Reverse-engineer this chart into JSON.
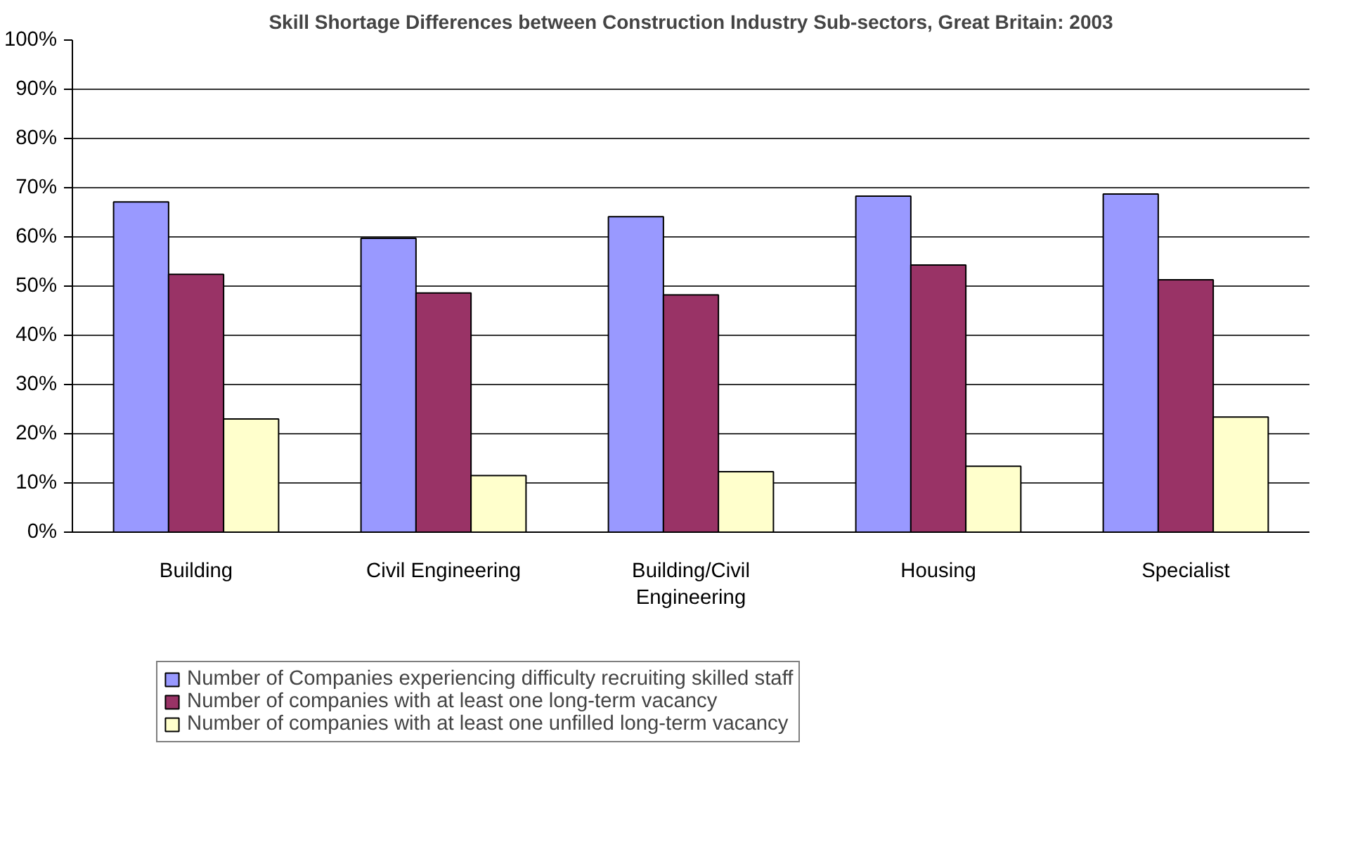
{
  "chart_data": {
    "type": "bar",
    "title": "Skill Shortage Differences between Construction Industry Sub-sectors, Great Britain: 2003",
    "categories": [
      "Building",
      "Civil Engineering",
      "Building/Civil Engineering",
      "Housing",
      "Specialist"
    ],
    "series": [
      {
        "name": "Number of Companies experiencing difficulty recruiting skilled staff",
        "color": "#9999ff",
        "values": [
          67.1,
          59.7,
          64.1,
          68.3,
          68.7
        ]
      },
      {
        "name": "Number of companies with at least one long-term vacancy",
        "color": "#993366",
        "values": [
          52.4,
          48.6,
          48.2,
          54.3,
          51.3
        ]
      },
      {
        "name": "Number of companies with at least one unfilled long-term vacancy",
        "color": "#ffffcc",
        "values": [
          23.0,
          11.5,
          12.3,
          13.4,
          23.4
        ]
      }
    ],
    "ylim": [
      0,
      100
    ],
    "yticks": [
      {
        "value": 0,
        "label": "0%"
      },
      {
        "value": 10,
        "label": "10%"
      },
      {
        "value": 20,
        "label": "20%"
      },
      {
        "value": 30,
        "label": "30%"
      },
      {
        "value": 40,
        "label": "40%"
      },
      {
        "value": 50,
        "label": "50%"
      },
      {
        "value": 60,
        "label": "60%"
      },
      {
        "value": 70,
        "label": "70%"
      },
      {
        "value": 80,
        "label": "80%"
      },
      {
        "value": 90,
        "label": "90%"
      },
      {
        "value": 100,
        "label": "100%"
      }
    ],
    "grid": "y",
    "legend": "bottom left"
  }
}
